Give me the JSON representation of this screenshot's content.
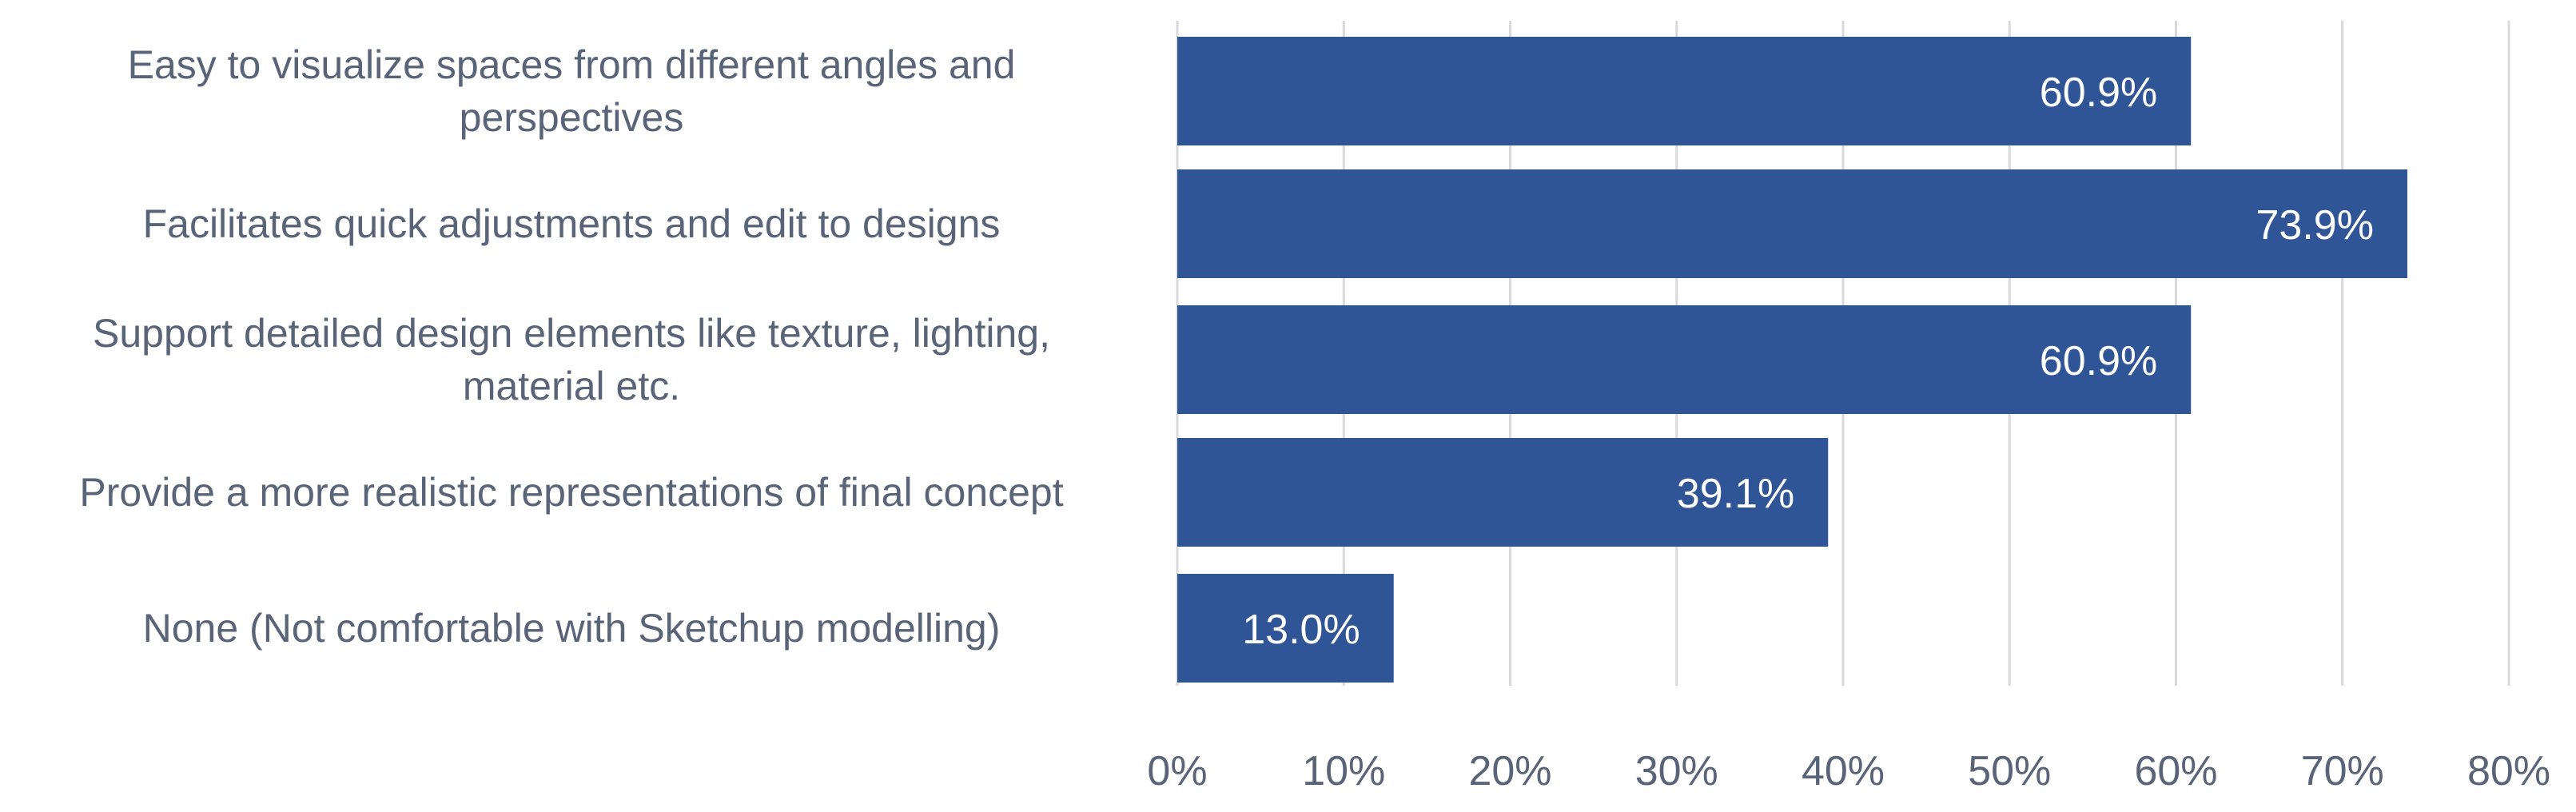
{
  "chart_data": {
    "type": "bar",
    "orientation": "horizontal",
    "categories": [
      "Easy to visualize spaces from different angles and perspectives",
      "Facilitates quick adjustments and edit to designs",
      "Support detailed design elements like texture, lighting, material etc.",
      "Provide a more realistic representations of final concept",
      "None (Not comfortable with Sketchup modelling)"
    ],
    "category_lines": [
      [
        "Easy to visualize spaces from different angles and",
        "perspectives"
      ],
      [
        "Facilitates quick adjustments and edit to designs"
      ],
      [
        "Support detailed design elements like texture, lighting,",
        "material etc."
      ],
      [
        "Provide a more realistic representations of final concept"
      ],
      [
        "None (Not comfortable with Sketchup modelling)"
      ]
    ],
    "values": [
      60.9,
      73.9,
      60.9,
      39.1,
      13.0
    ],
    "data_labels": [
      "60.9%",
      "73.9%",
      "60.9%",
      "39.1%",
      "13.0%"
    ],
    "x_ticks": [
      "0%",
      "10%",
      "20%",
      "30%",
      "40%",
      "50%",
      "60%",
      "70%",
      "80%"
    ],
    "xlim": [
      0,
      80
    ],
    "grid": "vertical",
    "legend": "none",
    "bar_color": "#2f5597",
    "data_label_color": "#ffffff",
    "tick_label_color": "#5a6478",
    "grid_color": "#d9d9d9"
  }
}
